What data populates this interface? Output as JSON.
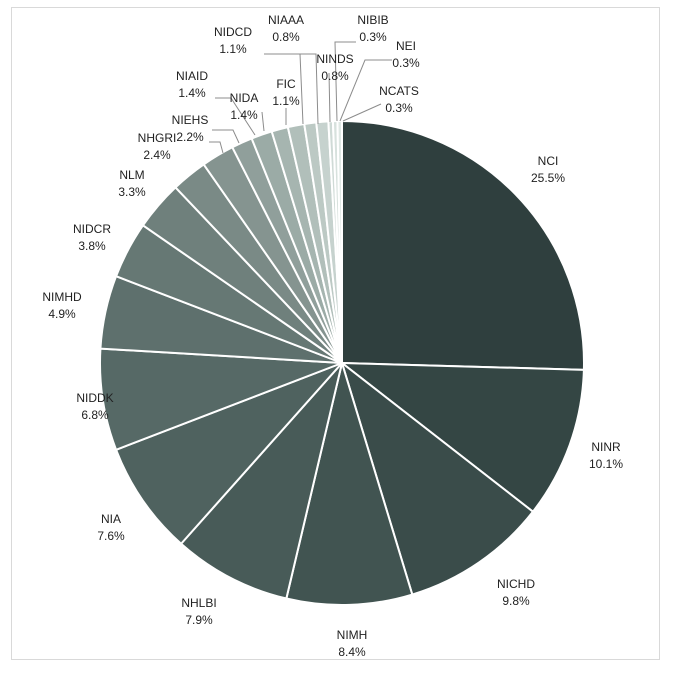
{
  "chart_data": {
    "type": "pie",
    "title": "",
    "start_angle_deg": 90,
    "direction": "clockwise",
    "slices": [
      {
        "label": "NCI",
        "value_label": "25.5%",
        "value": 25.5,
        "color": "#2f3f3e"
      },
      {
        "label": "NINR",
        "value_label": "10.1%",
        "value": 10.1,
        "color": "#344644"
      },
      {
        "label": "NICHD",
        "value_label": "9.8%",
        "value": 9.8,
        "color": "#3a4c4a"
      },
      {
        "label": "NIMH",
        "value_label": "8.4%",
        "value": 8.4,
        "color": "#415451"
      },
      {
        "label": "NHLBI",
        "value_label": "7.9%",
        "value": 7.9,
        "color": "#485b58"
      },
      {
        "label": "NIA",
        "value_label": "7.6%",
        "value": 7.6,
        "color": "#4f625f"
      },
      {
        "label": "NIDDK",
        "value_label": "6.8%",
        "value": 6.8,
        "color": "#566966"
      },
      {
        "label": "NIMHD",
        "value_label": "4.9%",
        "value": 4.9,
        "color": "#5e706d"
      },
      {
        "label": "NIDCR",
        "value_label": "3.8%",
        "value": 3.8,
        "color": "#667874"
      },
      {
        "label": "NLM",
        "value_label": "3.3%",
        "value": 3.3,
        "color": "#6f807c"
      },
      {
        "label": "NHGRI",
        "value_label": "2.4%",
        "value": 2.4,
        "color": "#7a8a86"
      },
      {
        "label": "NIEHS",
        "value_label": "2.2%",
        "value": 2.2,
        "color": "#859490"
      },
      {
        "label": "NIAID",
        "value_label": "1.4%",
        "value": 1.4,
        "color": "#909f9b"
      },
      {
        "label": "NIDA",
        "value_label": "1.4%",
        "value": 1.4,
        "color": "#9babA6"
      },
      {
        "label": "FIC",
        "value_label": "1.1%",
        "value": 1.1,
        "color": "#a6b5b0"
      },
      {
        "label": "NIDCD",
        "value_label": "1.1%",
        "value": 1.1,
        "color": "#b1bfba"
      },
      {
        "label": "NIAAA",
        "value_label": "0.8%",
        "value": 0.8,
        "color": "#bcc9c4"
      },
      {
        "label": "NINDS",
        "value_label": "0.8%",
        "value": 0.8,
        "color": "#c6d2ce"
      },
      {
        "label": "NIBIB",
        "value_label": "0.3%",
        "value": 0.3,
        "color": "#cfdad6"
      },
      {
        "label": "NEI",
        "value_label": "0.3%",
        "value": 0.3,
        "color": "#d7e1dd"
      },
      {
        "label": "NCATS",
        "value_label": "0.3%",
        "value": 0.3,
        "color": "#dfe8e4"
      }
    ]
  }
}
